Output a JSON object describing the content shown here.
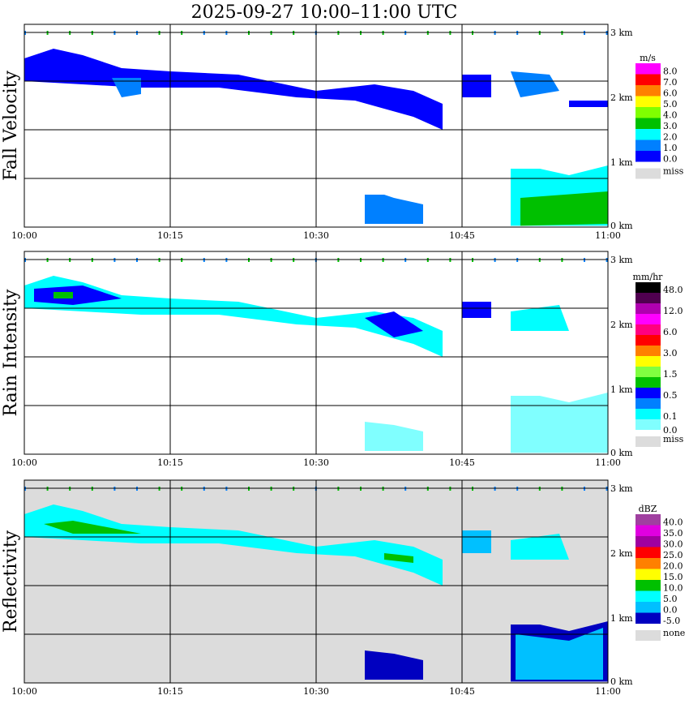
{
  "title": "2025-09-27   10:00–11:00 UTC",
  "chart_data": {
    "type": "heatmap",
    "title": "2025-09-27   10:00–11:00 UTC",
    "x_ticks": [
      "10:00",
      "10:15",
      "10:30",
      "10:45",
      "11:00"
    ],
    "xlim_minutes": [
      0,
      60
    ],
    "y_ticks": [
      "0 km",
      "1 km",
      "2 km",
      "3 km"
    ],
    "ylim_km": [
      0,
      3.1
    ],
    "grid": true,
    "panels": [
      {
        "name": "fall-velocity",
        "ylabel": "Fall Velocity",
        "unit": "m/s",
        "bg": "#ffffff",
        "legend": {
          "colors": [
            "#ff00ff",
            "#ff0000",
            "#ff8000",
            "#ffff00",
            "#80ff00",
            "#00c000",
            "#00ffff",
            "#0080ff",
            "#0000ff"
          ],
          "labels": [
            "8.0",
            "7.0",
            "6.0",
            "5.0",
            "4.0",
            "3.0",
            "2.0",
            "1.0",
            "0.0"
          ],
          "miss": "miss"
        },
        "echoes": [
          {
            "pts": [
              [
                0,
                2.6
              ],
              [
                3,
                2.75
              ],
              [
                6,
                2.65
              ],
              [
                10,
                2.45
              ],
              [
                15,
                2.4
              ],
              [
                22,
                2.35
              ],
              [
                30,
                2.1
              ],
              [
                36,
                2.2
              ],
              [
                40,
                2.1
              ],
              [
                43,
                1.9
              ],
              [
                43,
                1.5
              ],
              [
                40,
                1.7
              ],
              [
                34,
                1.95
              ],
              [
                28,
                2.0
              ],
              [
                20,
                2.15
              ],
              [
                12,
                2.15
              ],
              [
                6,
                2.2
              ],
              [
                0,
                2.25
              ]
            ],
            "color": "#0000ff"
          },
          {
            "pts": [
              [
                9,
                2.3
              ],
              [
                12,
                2.3
              ],
              [
                12,
                2.05
              ],
              [
                10,
                2.0
              ]
            ],
            "color": "#0080ff"
          },
          {
            "pts": [
              [
                45,
                2.35
              ],
              [
                48,
                2.35
              ],
              [
                48,
                2.0
              ],
              [
                45,
                2.0
              ]
            ],
            "color": "#0000ff"
          },
          {
            "pts": [
              [
                50,
                2.4
              ],
              [
                54,
                2.35
              ],
              [
                55,
                2.1
              ],
              [
                51,
                2.0
              ]
            ],
            "color": "#0080ff"
          },
          {
            "pts": [
              [
                56,
                1.95
              ],
              [
                60,
                1.95
              ],
              [
                60,
                1.85
              ],
              [
                56,
                1.85
              ]
            ],
            "color": "#0000ff"
          },
          {
            "pts": [
              [
                35,
                0.5
              ],
              [
                37,
                0.5
              ],
              [
                38,
                0.45
              ],
              [
                41,
                0.35
              ],
              [
                41,
                0.05
              ],
              [
                35,
                0.05
              ]
            ],
            "color": "#0080ff"
          },
          {
            "pts": [
              [
                50,
                0.9
              ],
              [
                53,
                0.9
              ],
              [
                56,
                0.8
              ],
              [
                60,
                0.95
              ],
              [
                60,
                0.02
              ],
              [
                50,
                0.02
              ]
            ],
            "color": "#00ffff"
          },
          {
            "pts": [
              [
                51,
                0.45
              ],
              [
                60,
                0.55
              ],
              [
                60,
                0.05
              ],
              [
                51,
                0.02
              ]
            ],
            "color": "#00c000"
          }
        ]
      },
      {
        "name": "rain-intensity",
        "ylabel": "Rain Intensity",
        "unit": "mm/hr",
        "bg": "#ffffff",
        "legend": {
          "colors": [
            "#000000",
            "#500050",
            "#b000b0",
            "#ff00ff",
            "#ff0080",
            "#ff0000",
            "#ff8000",
            "#ffff00",
            "#80ff40",
            "#00c000",
            "#0000ff",
            "#0080ff",
            "#00ffff",
            "#80ffff"
          ],
          "labels": [
            "48.0",
            "",
            "12.0",
            "",
            "6.0",
            "",
            "3.0",
            "",
            "1.5",
            "",
            "0.5",
            "",
            "0.1",
            "0.0"
          ],
          "miss": "miss"
        },
        "echoes": [
          {
            "pts": [
              [
                0,
                2.6
              ],
              [
                3,
                2.75
              ],
              [
                6,
                2.65
              ],
              [
                10,
                2.45
              ],
              [
                15,
                2.4
              ],
              [
                22,
                2.35
              ],
              [
                30,
                2.1
              ],
              [
                36,
                2.2
              ],
              [
                40,
                2.1
              ],
              [
                43,
                1.9
              ],
              [
                43,
                1.5
              ],
              [
                40,
                1.7
              ],
              [
                34,
                1.95
              ],
              [
                28,
                2.0
              ],
              [
                20,
                2.15
              ],
              [
                12,
                2.15
              ],
              [
                6,
                2.2
              ],
              [
                0,
                2.25
              ]
            ],
            "color": "#00ffff"
          },
          {
            "pts": [
              [
                1,
                2.55
              ],
              [
                6,
                2.6
              ],
              [
                10,
                2.4
              ],
              [
                5,
                2.3
              ],
              [
                1,
                2.35
              ]
            ],
            "color": "#0000ff"
          },
          {
            "pts": [
              [
                3,
                2.5
              ],
              [
                5,
                2.5
              ],
              [
                5,
                2.4
              ],
              [
                3,
                2.4
              ]
            ],
            "color": "#00c000"
          },
          {
            "pts": [
              [
                35,
                2.1
              ],
              [
                38,
                2.2
              ],
              [
                41,
                1.9
              ],
              [
                38,
                1.8
              ]
            ],
            "color": "#0000ff"
          },
          {
            "pts": [
              [
                45,
                2.35
              ],
              [
                48,
                2.35
              ],
              [
                48,
                2.1
              ],
              [
                45,
                2.1
              ]
            ],
            "color": "#0000ff"
          },
          {
            "pts": [
              [
                50,
                2.2
              ],
              [
                55,
                2.3
              ],
              [
                56,
                1.9
              ],
              [
                50,
                1.9
              ]
            ],
            "color": "#00ffff"
          },
          {
            "pts": [
              [
                35,
                0.5
              ],
              [
                38,
                0.45
              ],
              [
                41,
                0.35
              ],
              [
                41,
                0.05
              ],
              [
                35,
                0.05
              ]
            ],
            "color": "#80ffff"
          },
          {
            "pts": [
              [
                50,
                0.9
              ],
              [
                53,
                0.9
              ],
              [
                56,
                0.8
              ],
              [
                60,
                0.95
              ],
              [
                60,
                0.02
              ],
              [
                50,
                0.02
              ]
            ],
            "color": "#80ffff"
          }
        ]
      },
      {
        "name": "reflectivity",
        "ylabel": "Reflectivity",
        "unit": "dBZ",
        "bg": "#dcdcdc",
        "legend": {
          "colors": [
            "#a040a0",
            "#e000e0",
            "#a000a0",
            "#ff0000",
            "#ff8000",
            "#ffff00",
            "#00c000",
            "#00ffff",
            "#00c0ff",
            "#0000c0"
          ],
          "labels": [
            "40.0",
            "35.0",
            "30.0",
            "25.0",
            "20.0",
            "15.0",
            "10.0",
            "5.0",
            "0.0",
            "-5.0"
          ],
          "miss": "none"
        },
        "echoes": [
          {
            "pts": [
              [
                0,
                2.6
              ],
              [
                3,
                2.75
              ],
              [
                6,
                2.65
              ],
              [
                10,
                2.45
              ],
              [
                15,
                2.4
              ],
              [
                22,
                2.35
              ],
              [
                30,
                2.1
              ],
              [
                36,
                2.2
              ],
              [
                40,
                2.1
              ],
              [
                43,
                1.9
              ],
              [
                43,
                1.5
              ],
              [
                40,
                1.7
              ],
              [
                34,
                1.95
              ],
              [
                28,
                2.0
              ],
              [
                20,
                2.15
              ],
              [
                12,
                2.15
              ],
              [
                6,
                2.2
              ],
              [
                0,
                2.25
              ]
            ],
            "color": "#00ffff"
          },
          {
            "pts": [
              [
                2,
                2.45
              ],
              [
                5,
                2.5
              ],
              [
                12,
                2.3
              ],
              [
                5,
                2.3
              ]
            ],
            "color": "#00c000"
          },
          {
            "pts": [
              [
                37,
                2.0
              ],
              [
                40,
                1.95
              ],
              [
                40,
                1.85
              ],
              [
                37,
                1.9
              ]
            ],
            "color": "#00c000"
          },
          {
            "pts": [
              [
                45,
                2.35
              ],
              [
                48,
                2.35
              ],
              [
                48,
                2.0
              ],
              [
                45,
                2.0
              ]
            ],
            "color": "#00c0ff"
          },
          {
            "pts": [
              [
                50,
                2.2
              ],
              [
                55,
                2.3
              ],
              [
                56,
                1.9
              ],
              [
                50,
                1.9
              ]
            ],
            "color": "#00ffff"
          },
          {
            "pts": [
              [
                35,
                0.5
              ],
              [
                38,
                0.45
              ],
              [
                41,
                0.35
              ],
              [
                41,
                0.05
              ],
              [
                35,
                0.05
              ]
            ],
            "color": "#0000c0"
          },
          {
            "pts": [
              [
                50,
                0.9
              ],
              [
                53,
                0.9
              ],
              [
                56,
                0.8
              ],
              [
                60,
                0.95
              ],
              [
                60,
                0.02
              ],
              [
                50,
                0.02
              ]
            ],
            "color": "#0000c0"
          },
          {
            "pts": [
              [
                50.5,
                0.75
              ],
              [
                56,
                0.65
              ],
              [
                59.5,
                0.85
              ],
              [
                59.5,
                0.05
              ],
              [
                50.5,
                0.05
              ]
            ],
            "color": "#00c0ff"
          }
        ]
      }
    ]
  }
}
